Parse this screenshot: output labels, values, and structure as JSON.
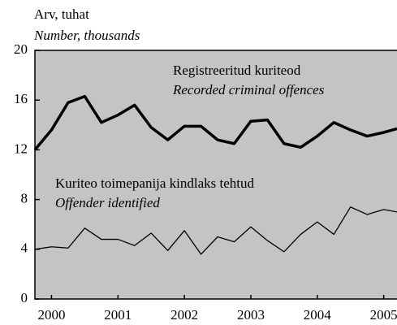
{
  "chart_data": {
    "type": "line",
    "y_label": "Arv, tuhat",
    "y_label_en": "Number, thousands",
    "x": [
      1999.75,
      2000,
      2000.25,
      2000.5,
      2000.75,
      2001,
      2001.25,
      2001.5,
      2001.75,
      2002,
      2002.25,
      2002.5,
      2002.75,
      2003,
      2003.25,
      2003.5,
      2003.75,
      2004,
      2004.25,
      2004.5,
      2004.75,
      2005,
      2005.2
    ],
    "series": [
      {
        "name": "Registreeritud kuriteod",
        "name_en": "Recorded criminal offences",
        "color": "#000000",
        "values": [
          12.0,
          13.6,
          15.8,
          16.3,
          14.2,
          14.8,
          15.6,
          13.8,
          12.8,
          13.9,
          13.9,
          12.8,
          12.5,
          14.3,
          14.4,
          12.5,
          12.2,
          13.1,
          14.2,
          13.6,
          13.1,
          13.4,
          13.7
        ]
      },
      {
        "name": "Kuriteo toimepanija kindlaks tehtud",
        "name_en": "Offender identified",
        "color": "#000000",
        "values": [
          4.0,
          4.2,
          4.1,
          5.7,
          4.8,
          4.8,
          4.3,
          5.3,
          3.9,
          5.5,
          3.6,
          5.0,
          4.6,
          5.8,
          4.7,
          3.8,
          5.2,
          6.2,
          5.2,
          7.4,
          6.8,
          7.2,
          7.0
        ]
      }
    ],
    "xlim": [
      1999.75,
      2005.2
    ],
    "xticks": [
      2000,
      2001,
      2002,
      2003,
      2004,
      2005
    ],
    "ylim": [
      0,
      20
    ],
    "yticks": [
      0,
      4,
      8,
      12,
      16,
      20
    ],
    "background": "#c4c4c4"
  }
}
